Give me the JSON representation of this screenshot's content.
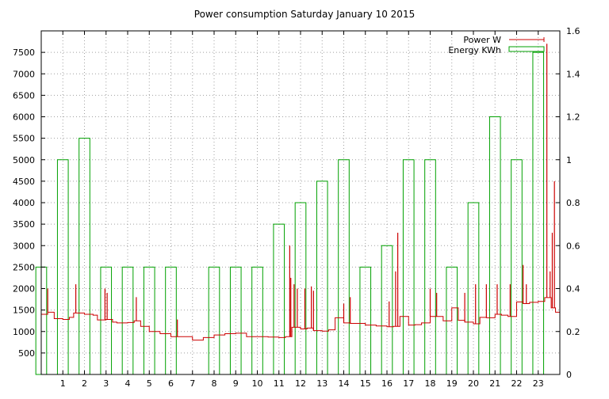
{
  "chart_data": {
    "type": "bar+line",
    "title": "Power consumption Saturday January 10 2015",
    "xlabel": "",
    "ylabel": "",
    "x_ticks": [
      1,
      2,
      3,
      4,
      5,
      6,
      7,
      8,
      9,
      10,
      11,
      12,
      13,
      14,
      15,
      16,
      17,
      18,
      19,
      20,
      21,
      22,
      23
    ],
    "xlim": [
      0,
      24
    ],
    "y_left": {
      "lim": [
        0,
        8000
      ],
      "ticks": [
        500,
        1000,
        1500,
        2000,
        2500,
        3000,
        3500,
        4000,
        4500,
        5000,
        5500,
        6000,
        6500,
        7000,
        7500
      ]
    },
    "y_right": {
      "lim": [
        0,
        1.6
      ],
      "ticks": [
        0,
        0.2,
        0.4,
        0.6,
        0.8,
        1,
        1.2,
        1.4,
        1.6
      ]
    },
    "grid": true,
    "legend_position": "top-right",
    "colors": {
      "power": "#cc0000",
      "energy": "#00a000",
      "grid": "#a0a0a0"
    },
    "series": [
      {
        "name": "Energy KWh",
        "type": "bar",
        "axis": "right",
        "x": [
          0,
          1,
          2,
          3,
          4,
          5,
          6,
          7,
          8,
          9,
          10,
          11,
          12,
          13,
          14,
          15,
          16,
          17,
          18,
          19,
          20,
          21,
          22,
          23
        ],
        "values": [
          0.5,
          1.0,
          1.1,
          0.5,
          0.5,
          0.5,
          0.5,
          0,
          0.5,
          0.5,
          0.5,
          0.7,
          0.8,
          0.9,
          1.0,
          0.5,
          0.6,
          1.0,
          1.0,
          0.5,
          0.8,
          1.2,
          1.0,
          1.5
        ]
      },
      {
        "name": "Power W",
        "type": "line",
        "axis": "left",
        "step_x": [
          0,
          0.3,
          0.6,
          1.0,
          1.3,
          1.5,
          2.0,
          2.4,
          2.6,
          3.0,
          3.3,
          3.5,
          4.0,
          4.3,
          4.6,
          5.0,
          5.5,
          6.0,
          6.5,
          7.0,
          7.5,
          8.0,
          8.5,
          9.0,
          9.5,
          10.0,
          10.5,
          11.0,
          11.3,
          11.6,
          12.0,
          12.3,
          12.6,
          13.0,
          13.3,
          13.6,
          14.0,
          14.3,
          14.6,
          15.0,
          15.5,
          16.0,
          16.3,
          16.6,
          17.0,
          17.3,
          17.6,
          18.0,
          18.3,
          18.6,
          19.0,
          19.3,
          19.6,
          20.0,
          20.3,
          20.6,
          21.0,
          21.3,
          21.6,
          22.0,
          22.3,
          22.6,
          23.0,
          23.3,
          23.6,
          23.8,
          24.0
        ],
        "step_y": [
          1400,
          1450,
          1300,
          1280,
          1330,
          1430,
          1400,
          1380,
          1270,
          1280,
          1220,
          1200,
          1210,
          1250,
          1120,
          1000,
          950,
          880,
          880,
          800,
          860,
          920,
          950,
          960,
          880,
          880,
          870,
          860,
          880,
          1100,
          1060,
          1080,
          1020,
          1010,
          1040,
          1320,
          1200,
          1190,
          1190,
          1150,
          1130,
          1110,
          1120,
          1350,
          1150,
          1160,
          1200,
          1350,
          1350,
          1250,
          1550,
          1260,
          1220,
          1180,
          1330,
          1320,
          1400,
          1380,
          1350,
          1690,
          1650,
          1680,
          1700,
          1790,
          1550,
          1450,
          3300
        ],
        "spikes": [
          {
            "x": 0.3,
            "y": 2000
          },
          {
            "x": 1.6,
            "y": 2100
          },
          {
            "x": 2.95,
            "y": 2000
          },
          {
            "x": 3.05,
            "y": 1900
          },
          {
            "x": 4.4,
            "y": 1800
          },
          {
            "x": 6.3,
            "y": 1280
          },
          {
            "x": 11.5,
            "y": 3000
          },
          {
            "x": 11.55,
            "y": 2250
          },
          {
            "x": 11.7,
            "y": 2100
          },
          {
            "x": 11.85,
            "y": 2000
          },
          {
            "x": 12.2,
            "y": 2000
          },
          {
            "x": 12.5,
            "y": 2050
          },
          {
            "x": 12.6,
            "y": 1950
          },
          {
            "x": 14.0,
            "y": 1650
          },
          {
            "x": 14.3,
            "y": 1800
          },
          {
            "x": 16.1,
            "y": 1700
          },
          {
            "x": 16.5,
            "y": 3300
          },
          {
            "x": 16.4,
            "y": 2400
          },
          {
            "x": 18.3,
            "y": 1900
          },
          {
            "x": 18.0,
            "y": 2000
          },
          {
            "x": 19.6,
            "y": 1900
          },
          {
            "x": 20.1,
            "y": 2100
          },
          {
            "x": 20.6,
            "y": 2100
          },
          {
            "x": 21.1,
            "y": 2100
          },
          {
            "x": 21.7,
            "y": 2100
          },
          {
            "x": 22.3,
            "y": 2550
          },
          {
            "x": 22.45,
            "y": 2100
          },
          {
            "x": 23.4,
            "y": 7700
          },
          {
            "x": 23.55,
            "y": 2400
          },
          {
            "x": 23.65,
            "y": 3300
          },
          {
            "x": 23.75,
            "y": 4500
          }
        ]
      }
    ]
  }
}
